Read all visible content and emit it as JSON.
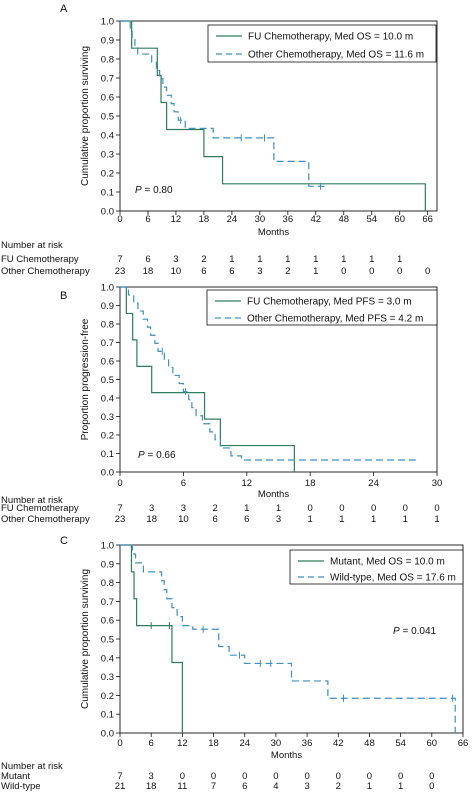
{
  "colors": {
    "fu": "#2e7d5b",
    "other": "#3d8fc4",
    "axis": "#111111"
  },
  "chart_data": [
    {
      "panel": "A",
      "type": "line",
      "ylabel": "Cumulative proportion surviving",
      "xlabel": "Months",
      "xlim": [
        0,
        68
      ],
      "ylim": [
        0,
        1
      ],
      "xticks": [
        "0",
        "6",
        "12",
        "18",
        "24",
        "30",
        "36",
        "42",
        "48",
        "54",
        "60",
        "66"
      ],
      "yticks": [
        "0.0",
        "0.1",
        "0.2",
        "0.3",
        "0.4",
        "0.5",
        "0.6",
        "0.7",
        "0.8",
        "0.9",
        "1.0"
      ],
      "p_label": "P",
      "p_value": " = 0.80",
      "series": [
        {
          "name": "FU Chemotherapy, Med OS = 10.0 m",
          "style": "solid",
          "color": "#2e7d5b",
          "steps": [
            [
              0,
              1.0
            ],
            [
              2.5,
              0.857
            ],
            [
              8,
              0.714
            ],
            [
              8.8,
              0.571
            ],
            [
              10,
              0.429
            ],
            [
              18,
              0.286
            ],
            [
              22,
              0.143
            ],
            [
              65.5,
              0.0
            ]
          ],
          "censor": [],
          "end": 65.5
        },
        {
          "name": "Other Chemotherapy, Med OS = 11.6 m",
          "style": "dashed",
          "color": "#3d8fc4",
          "steps": [
            [
              0,
              1.0
            ],
            [
              2.2,
              0.957
            ],
            [
              2.6,
              0.913
            ],
            [
              3.2,
              0.87
            ],
            [
              3.8,
              0.826
            ],
            [
              6.8,
              0.783
            ],
            [
              7.8,
              0.739
            ],
            [
              8.5,
              0.696
            ],
            [
              9.2,
              0.652
            ],
            [
              10,
              0.609
            ],
            [
              11,
              0.565
            ],
            [
              11.6,
              0.522
            ],
            [
              12.5,
              0.478
            ],
            [
              14,
              0.435
            ],
            [
              20,
              0.385
            ],
            [
              33,
              0.261
            ],
            [
              40.5,
              0.13
            ]
          ],
          "censor": [
            [
              13,
              0.478
            ],
            [
              26,
              0.385
            ],
            [
              31,
              0.385
            ],
            [
              43,
              0.13
            ]
          ],
          "end": 44
        }
      ],
      "legend_position": "top-right",
      "risk": {
        "title": "Number at risk",
        "time_ticks": [
          0,
          6,
          12,
          18,
          24,
          30,
          36,
          42,
          48,
          54,
          60,
          66
        ],
        "rows": [
          {
            "label": "FU Chemotherapy",
            "counts": [
              "7",
              "6",
              "3",
              "2",
              "1",
              "1",
              "1",
              "1",
              "1",
              "1",
              "1",
              ""
            ]
          },
          {
            "label": "Other Chemotherapy",
            "counts": [
              "23",
              "18",
              "10",
              "6",
              "6",
              "3",
              "2",
              "1",
              "0",
              "0",
              "0",
              "0"
            ]
          }
        ]
      }
    },
    {
      "panel": "B",
      "type": "line",
      "ylabel": "Proportion progression-free",
      "xlabel": "Months",
      "xlim": [
        0,
        30
      ],
      "ylim": [
        0,
        1
      ],
      "xticks": [
        "0",
        "6",
        "12",
        "18",
        "24",
        "30"
      ],
      "yticks": [
        "0.0",
        "0.1",
        "0.2",
        "0.3",
        "0.4",
        "0.5",
        "0.6",
        "0.7",
        "0.8",
        "0.9",
        "1.0"
      ],
      "p_label": "P",
      "p_value": " = 0.66",
      "series": [
        {
          "name": "FU Chemotherapy, Med PFS = 3.0 m",
          "style": "solid",
          "color": "#2e7d5b",
          "steps": [
            [
              0,
              1.0
            ],
            [
              0.6,
              0.857
            ],
            [
              1.2,
              0.714
            ],
            [
              1.6,
              0.571
            ],
            [
              3,
              0.429
            ],
            [
              8,
              0.286
            ],
            [
              9.5,
              0.143
            ],
            [
              16.5,
              0.0
            ]
          ],
          "censor": [],
          "end": 16.5
        },
        {
          "name": "Other Chemotherapy, Med PFS = 4.2 m",
          "style": "dashed",
          "color": "#3d8fc4",
          "steps": [
            [
              0,
              1.0
            ],
            [
              0.8,
              0.957
            ],
            [
              1.3,
              0.913
            ],
            [
              1.7,
              0.87
            ],
            [
              2.2,
              0.826
            ],
            [
              2.6,
              0.783
            ],
            [
              2.9,
              0.739
            ],
            [
              3.3,
              0.696
            ],
            [
              3.6,
              0.652
            ],
            [
              4.2,
              0.609
            ],
            [
              4.6,
              0.565
            ],
            [
              5,
              0.522
            ],
            [
              5.6,
              0.478
            ],
            [
              6,
              0.435
            ],
            [
              6.5,
              0.391
            ],
            [
              6.8,
              0.348
            ],
            [
              7.2,
              0.304
            ],
            [
              7.8,
              0.261
            ],
            [
              8.5,
              0.217
            ],
            [
              9,
              0.174
            ],
            [
              9.5,
              0.13
            ],
            [
              10.5,
              0.087
            ],
            [
              11.5,
              0.065
            ]
          ],
          "censor": [
            [
              4,
              0.652
            ],
            [
              6.2,
              0.435
            ]
          ],
          "end": 28
        }
      ],
      "legend_position": "top-right",
      "risk": {
        "title": "Number at risk",
        "time_ticks": [
          0,
          3,
          6,
          9,
          12,
          15,
          18,
          21,
          24,
          27,
          30
        ],
        "rows": [
          {
            "label": "FU Chemotherapy",
            "counts": [
              "7",
              "3",
              "3",
              "2",
              "1",
              "1",
              "0",
              "0",
              "0",
              "0",
              "0"
            ]
          },
          {
            "label": "Other Chemotherapy",
            "counts": [
              "23",
              "18",
              "10",
              "6",
              "6",
              "3",
              "1",
              "1",
              "1",
              "1",
              "1"
            ]
          }
        ]
      }
    },
    {
      "panel": "C",
      "type": "line",
      "ylabel": "Cumulative proportion surviving",
      "xlabel": "Months",
      "xlim": [
        0,
        66
      ],
      "ylim": [
        0,
        1
      ],
      "xticks": [
        "0",
        "6",
        "12",
        "18",
        "24",
        "30",
        "36",
        "42",
        "48",
        "54",
        "60",
        "66"
      ],
      "yticks": [
        "0.0",
        "0.1",
        "0.2",
        "0.3",
        "0.4",
        "0.5",
        "0.6",
        "0.7",
        "0.8",
        "0.9",
        "1.0"
      ],
      "p_label": "P",
      "p_value": " = 0.041",
      "series": [
        {
          "name": "Mutant, Med OS = 10.0 m",
          "style": "solid",
          "color": "#2e7d5b",
          "steps": [
            [
              0,
              1.0
            ],
            [
              2.2,
              0.857
            ],
            [
              2.7,
              0.714
            ],
            [
              3.2,
              0.571
            ],
            [
              10,
              0.375
            ],
            [
              12,
              0.0
            ]
          ],
          "censor": [
            [
              6,
              0.571
            ],
            [
              9.5,
              0.571
            ]
          ],
          "end": 12
        },
        {
          "name": "Wild-type, Med OS = 17.6 m",
          "style": "dashed",
          "color": "#3d8fc4",
          "steps": [
            [
              0,
              1.0
            ],
            [
              2.4,
              0.952
            ],
            [
              3,
              0.905
            ],
            [
              4.5,
              0.857
            ],
            [
              8,
              0.81
            ],
            [
              8.5,
              0.762
            ],
            [
              9,
              0.714
            ],
            [
              10,
              0.667
            ],
            [
              11,
              0.619
            ],
            [
              12,
              0.571
            ],
            [
              14,
              0.552
            ],
            [
              19,
              0.46
            ],
            [
              21,
              0.414
            ],
            [
              24,
              0.37
            ],
            [
              33,
              0.277
            ],
            [
              40,
              0.185
            ],
            [
              64.5,
              0.0
            ]
          ],
          "censor": [
            [
              16,
              0.552
            ],
            [
              23,
              0.414
            ],
            [
              27,
              0.37
            ],
            [
              29,
              0.37
            ],
            [
              43,
              0.185
            ],
            [
              64,
              0.185
            ]
          ],
          "end": 64.5
        }
      ],
      "legend_position": "top-right",
      "risk": {
        "title": "Number at risk",
        "time_ticks": [
          0,
          6,
          12,
          18,
          24,
          30,
          36,
          42,
          48,
          54,
          60,
          66
        ],
        "rows": [
          {
            "label": "Mutant",
            "counts": [
              "7",
              "3",
              "0",
              "0",
              "0",
              "0",
              "0",
              "0",
              "0",
              "0",
              "0",
              ""
            ]
          },
          {
            "label": "Wild-type",
            "counts": [
              "21",
              "18",
              "11",
              "7",
              "6",
              "4",
              "3",
              "2",
              "1",
              "1",
              "0",
              ""
            ]
          }
        ]
      }
    }
  ]
}
